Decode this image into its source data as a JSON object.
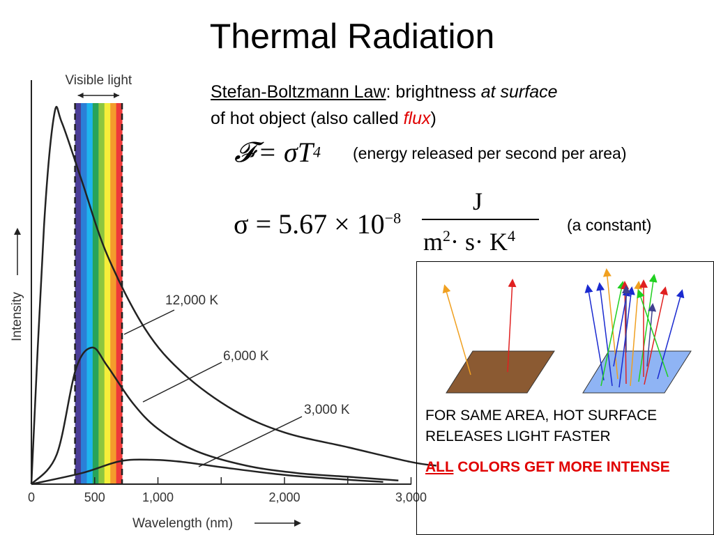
{
  "title": "Thermal Radiation",
  "law": {
    "name": "Stefan-Boltzmann Law",
    "text_1": ": brightness ",
    "emph": "at surface",
    "text_2": "of hot object (also called ",
    "flux": "flux",
    "text_3": ")"
  },
  "equation1": {
    "lhs": "𝓕",
    "rhs": "= σT",
    "exp": "4",
    "description": "(energy released per second per area)"
  },
  "equation2": {
    "lhs": "σ = 5.67 × 10",
    "exp": "−8",
    "numerator": "J",
    "den_1": "m",
    "den_exp1": "2",
    "den_2": "· s· K",
    "den_exp2": "4",
    "note": "(a constant)"
  },
  "panel": {
    "text": "FOR SAME AREA, HOT SURFACE RELEASES LIGHT FASTER",
    "alert_underlined": "ALL",
    "alert_rest": " COLORS GET MORE INTENSE",
    "cool_surface_color": "#8b5a32",
    "hot_surface_color": "#8fb4f4"
  },
  "chart_data": {
    "type": "line",
    "xlabel": "Wavelength (nm)",
    "ylabel": "Intensity",
    "x_ticks": [
      "0",
      "500",
      "1,000",
      "2,000",
      "3,000"
    ],
    "visible_band_label": "Visible light",
    "visible_band_nm": [
      400,
      700
    ],
    "xlim": [
      0,
      3000
    ],
    "y_axis_values_printed": false,
    "series": [
      {
        "name": "12,000 K",
        "x": [
          0,
          100,
          180,
          240,
          400,
          600,
          900,
          1200,
          1600,
          2000,
          2500,
          3000,
          3200
        ],
        "y": [
          0,
          0.7,
          1.0,
          0.98,
          0.82,
          0.62,
          0.42,
          0.3,
          0.2,
          0.14,
          0.1,
          0.06,
          0.05
        ]
      },
      {
        "name": "6,000 K",
        "x": [
          0,
          200,
          350,
          480,
          600,
          800,
          1000,
          1300,
          1700,
          2100,
          2500,
          2900
        ],
        "y": [
          0,
          0.08,
          0.31,
          0.37,
          0.32,
          0.22,
          0.15,
          0.09,
          0.05,
          0.03,
          0.02,
          0.01
        ]
      },
      {
        "name": "3,000 K",
        "x": [
          0,
          400,
          700,
          950,
          1200,
          1500,
          2000,
          2500,
          2780
        ],
        "y": [
          0,
          0.03,
          0.062,
          0.066,
          0.06,
          0.046,
          0.025,
          0.012,
          0.006
        ]
      }
    ],
    "curve_labels": [
      "12,000 K",
      "6,000 K",
      "3,000 K"
    ]
  }
}
